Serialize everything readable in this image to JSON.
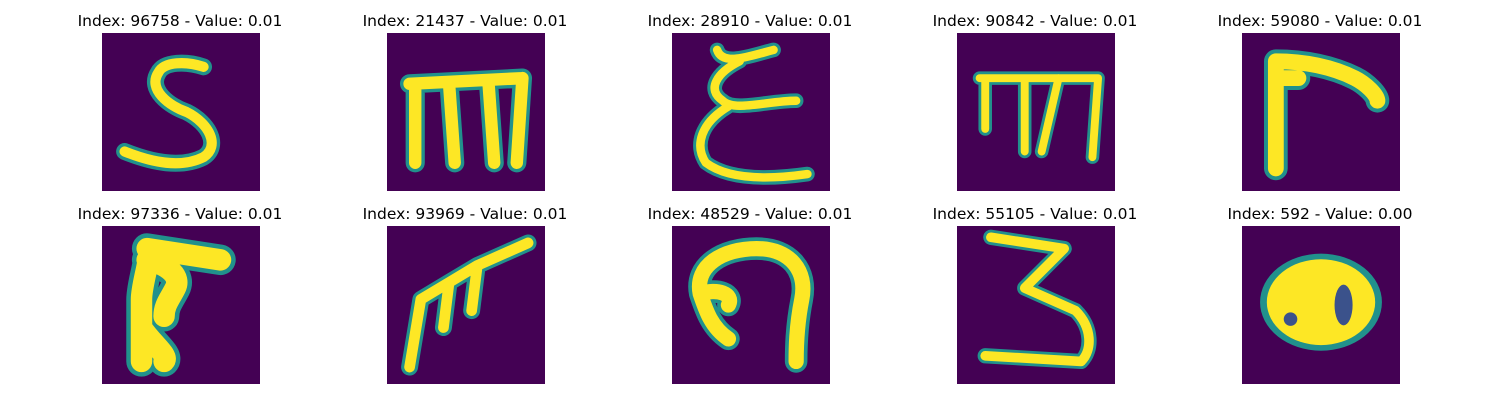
{
  "panels": [
    {
      "index": "96758",
      "value": "0.01",
      "title": "Index: 96758 - Value: 0.01",
      "glyph": "S-shape"
    },
    {
      "index": "21437",
      "value": "0.01",
      "title": "Index: 21437 - Value: 0.01",
      "glyph": "m-shape"
    },
    {
      "index": "28910",
      "value": "0.01",
      "title": "Index: 28910 - Value: 0.01",
      "glyph": "epsilon-shape"
    },
    {
      "index": "90842",
      "value": "0.01",
      "title": "Index: 90842 - Value: 0.01",
      "glyph": "m-shape"
    },
    {
      "index": "59080",
      "value": "0.01",
      "title": "Index: 59080 - Value: 0.01",
      "glyph": "r-shape"
    },
    {
      "index": "97336",
      "value": "0.01",
      "title": "Index: 97336 - Value: 0.01",
      "glyph": "r-shape"
    },
    {
      "index": "93969",
      "value": "0.01",
      "title": "Index: 93969 - Value: 0.01",
      "glyph": "r-shape"
    },
    {
      "index": "48529",
      "value": "0.01",
      "title": "Index: 48529 - Value: 0.01",
      "glyph": "n-shape"
    },
    {
      "index": "55105",
      "value": "0.01",
      "title": "Index: 55105 - Value: 0.01",
      "glyph": "3-shape"
    },
    {
      "index": "592",
      "value": "0.00",
      "title": "Index: 592 - Value: 0.00",
      "glyph": "blob-shape"
    }
  ],
  "colors": {
    "background": "#440154",
    "edge": "#21918c",
    "stroke": "#fde725"
  }
}
